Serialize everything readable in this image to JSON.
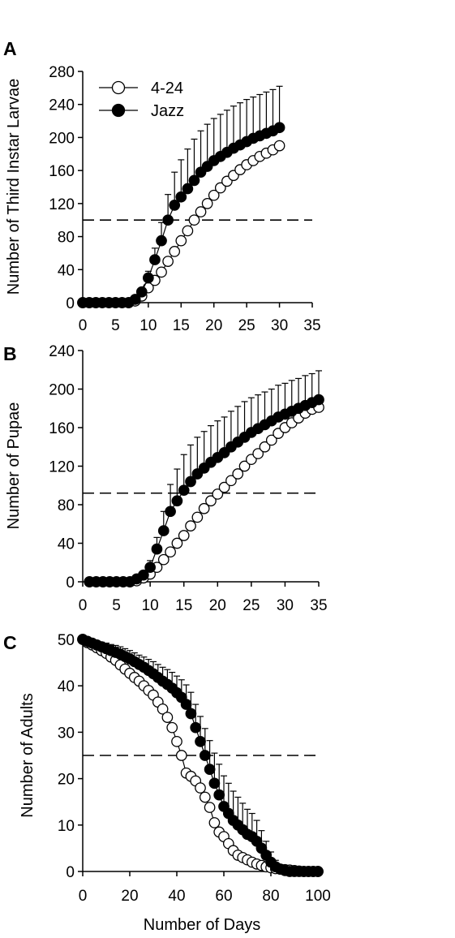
{
  "chart_data": [
    {
      "type": "line",
      "panel_label": "A",
      "xlabel": "",
      "ylabel": "Number of Third Instar Larvae",
      "xlim": [
        0,
        35
      ],
      "ylim": [
        0,
        280
      ],
      "xticks": [
        0,
        5,
        10,
        15,
        20,
        25,
        30,
        35
      ],
      "yticks": [
        0,
        40,
        80,
        120,
        160,
        200,
        240,
        280
      ],
      "reference_line": 100,
      "legend": {
        "position": "top-left",
        "entries": [
          "4-24",
          "Jazz"
        ]
      },
      "series": [
        {
          "name": "4-24",
          "marker": "open-circle",
          "color": "#000000",
          "x": [
            0,
            1,
            2,
            3,
            4,
            5,
            6,
            7,
            8,
            9,
            10,
            11,
            12,
            13,
            14,
            15,
            16,
            17,
            18,
            19,
            20,
            21,
            22,
            23,
            24,
            25,
            26,
            27,
            28,
            29,
            30
          ],
          "y": [
            0,
            0,
            0,
            0,
            0,
            0,
            0,
            0,
            2,
            8,
            18,
            27,
            37,
            50,
            62,
            75,
            87,
            100,
            110,
            120,
            130,
            139,
            147,
            154,
            161,
            167,
            172,
            177,
            181,
            185,
            190
          ],
          "err": [
            0,
            0,
            0,
            0,
            0,
            0,
            0,
            0,
            0,
            0,
            0,
            0,
            0,
            0,
            0,
            0,
            0,
            0,
            0,
            0,
            0,
            0,
            0,
            0,
            0,
            0,
            0,
            0,
            0,
            0,
            0
          ]
        },
        {
          "name": "Jazz",
          "marker": "filled-circle",
          "color": "#000000",
          "x": [
            0,
            1,
            2,
            3,
            4,
            5,
            6,
            7,
            8,
            9,
            10,
            11,
            12,
            13,
            14,
            15,
            16,
            17,
            18,
            19,
            20,
            21,
            22,
            23,
            24,
            25,
            26,
            27,
            28,
            29,
            30
          ],
          "y": [
            0,
            0,
            0,
            0,
            0,
            0,
            0,
            0,
            4,
            13,
            30,
            52,
            75,
            100,
            118,
            128,
            138,
            148,
            158,
            165,
            172,
            177,
            182,
            187,
            191,
            195,
            199,
            202,
            205,
            208,
            212
          ],
          "err": [
            0,
            0,
            0,
            0,
            0,
            0,
            0,
            0,
            1,
            4,
            8,
            14,
            22,
            31,
            40,
            45,
            48,
            50,
            50,
            51,
            51,
            51,
            51,
            51,
            51,
            51,
            50,
            50,
            50,
            50,
            50
          ]
        }
      ]
    },
    {
      "type": "line",
      "panel_label": "B",
      "xlabel": "",
      "ylabel": "Number of Pupae",
      "xlim": [
        0,
        35
      ],
      "ylim": [
        0,
        240
      ],
      "xticks": [
        0,
        5,
        10,
        15,
        20,
        25,
        30,
        35
      ],
      "yticks": [
        0,
        40,
        80,
        120,
        160,
        200,
        240
      ],
      "reference_line": 92,
      "series": [
        {
          "name": "4-24",
          "marker": "open-circle",
          "color": "#000000",
          "x": [
            1,
            2,
            3,
            4,
            5,
            6,
            7,
            8,
            9,
            10,
            11,
            12,
            13,
            14,
            15,
            16,
            17,
            18,
            19,
            20,
            21,
            22,
            23,
            24,
            25,
            26,
            27,
            28,
            29,
            30,
            31,
            32,
            33,
            34,
            35
          ],
          "y": [
            0,
            0,
            0,
            0,
            0,
            0,
            0,
            1,
            4,
            8,
            15,
            23,
            31,
            40,
            48,
            58,
            67,
            76,
            84,
            91,
            98,
            105,
            112,
            120,
            127,
            133,
            140,
            147,
            154,
            160,
            165,
            170,
            175,
            179,
            181
          ],
          "err": [
            0,
            0,
            0,
            0,
            0,
            0,
            0,
            0,
            0,
            0,
            0,
            0,
            0,
            0,
            0,
            0,
            0,
            0,
            0,
            0,
            0,
            0,
            0,
            0,
            0,
            0,
            0,
            0,
            0,
            0,
            0,
            0,
            0,
            0,
            0
          ]
        },
        {
          "name": "Jazz",
          "marker": "filled-circle",
          "color": "#000000",
          "x": [
            1,
            2,
            3,
            4,
            5,
            6,
            7,
            8,
            9,
            10,
            11,
            12,
            13,
            14,
            15,
            16,
            17,
            18,
            19,
            20,
            21,
            22,
            23,
            24,
            25,
            26,
            27,
            28,
            29,
            30,
            31,
            32,
            33,
            34,
            35
          ],
          "y": [
            0,
            0,
            0,
            0,
            0,
            0,
            0,
            3,
            7,
            15,
            34,
            53,
            73,
            84,
            95,
            104,
            112,
            118,
            124,
            129,
            134,
            140,
            145,
            150,
            155,
            159,
            163,
            167,
            171,
            174,
            177,
            180,
            183,
            186,
            189
          ],
          "err": [
            0,
            0,
            0,
            0,
            0,
            0,
            0,
            1,
            3,
            7,
            12,
            20,
            28,
            33,
            37,
            38,
            38,
            38,
            38,
            38,
            37,
            37,
            37,
            37,
            36,
            35,
            34,
            33,
            33,
            32,
            32,
            31,
            31,
            30,
            30
          ]
        }
      ]
    },
    {
      "type": "line",
      "panel_label": "C",
      "xlabel": "Number of Days",
      "ylabel": "Number of Adults",
      "xlim": [
        0,
        100
      ],
      "ylim": [
        0,
        50
      ],
      "xticks": [
        0,
        20,
        40,
        60,
        80,
        100
      ],
      "yticks": [
        0,
        10,
        20,
        30,
        40,
        50
      ],
      "reference_line": 25,
      "series": [
        {
          "name": "4-24",
          "marker": "open-circle",
          "color": "#000000",
          "x": [
            0,
            2,
            4,
            6,
            8,
            10,
            12,
            14,
            16,
            18,
            20,
            22,
            24,
            26,
            28,
            30,
            32,
            34,
            36,
            38,
            40,
            42,
            44,
            46,
            48,
            50,
            52,
            54,
            56,
            58,
            60,
            62,
            64,
            66,
            68,
            70,
            72,
            74,
            76,
            78,
            80,
            82,
            84,
            86,
            88,
            90,
            92,
            94,
            96,
            98,
            100
          ],
          "y": [
            50,
            49.3,
            48.8,
            48.2,
            47.6,
            47,
            46.2,
            45.5,
            44.5,
            43.6,
            42.7,
            41.8,
            41,
            40,
            39,
            38,
            36.5,
            35,
            33.2,
            31,
            28,
            25,
            21.2,
            20.5,
            19.5,
            18,
            16,
            13.8,
            10.5,
            8.5,
            7.5,
            6,
            4.5,
            3.5,
            3,
            2.5,
            2,
            1.6,
            1.3,
            1,
            0.8,
            0.6,
            0.5,
            0.4,
            0.3,
            0.2,
            0.1,
            0,
            0,
            0,
            0
          ],
          "err": [
            0,
            0,
            0,
            0,
            0,
            0,
            0,
            0,
            0,
            0,
            0,
            0,
            0,
            0,
            0,
            0,
            0,
            0,
            0,
            0,
            0,
            0,
            0,
            0,
            0,
            0,
            0,
            0,
            0,
            0,
            0,
            0,
            0,
            0,
            0,
            0,
            0,
            0,
            0,
            0,
            0,
            0,
            0,
            0,
            0,
            0,
            0,
            0,
            0,
            0,
            0
          ]
        },
        {
          "name": "Jazz",
          "marker": "filled-circle",
          "color": "#000000",
          "x": [
            0,
            2,
            4,
            6,
            8,
            10,
            12,
            14,
            16,
            18,
            20,
            22,
            24,
            26,
            28,
            30,
            32,
            34,
            36,
            38,
            40,
            42,
            44,
            46,
            48,
            50,
            52,
            54,
            56,
            58,
            60,
            62,
            64,
            66,
            68,
            70,
            72,
            74,
            76,
            78,
            80,
            82,
            84,
            86,
            88,
            90,
            92,
            94,
            96,
            98,
            100
          ],
          "y": [
            50,
            49.6,
            49.2,
            48.8,
            48.4,
            48,
            47.6,
            47.2,
            46.8,
            46.3,
            45.8,
            45.2,
            44.6,
            44,
            43.3,
            42.6,
            41.8,
            41,
            40.3,
            39.5,
            38.5,
            37.5,
            36,
            34,
            31,
            28,
            25,
            22,
            19,
            16.5,
            14,
            12.5,
            11,
            10,
            9,
            8,
            7.5,
            6.5,
            5,
            3.5,
            2,
            1,
            0.5,
            0.2,
            0,
            0,
            0,
            0,
            0,
            0,
            0
          ],
          "err": [
            0,
            0.5,
            0.7,
            0.8,
            1,
            1.2,
            1.3,
            1.5,
            1.6,
            1.7,
            1.8,
            1.9,
            2,
            2.2,
            2.4,
            2.6,
            2.8,
            3,
            3.2,
            3.4,
            3.6,
            3.8,
            4.2,
            4.6,
            5,
            5.4,
            5.8,
            6.2,
            6.5,
            6.6,
            6.6,
            6.5,
            6.3,
            6,
            5.7,
            5.4,
            5,
            4.5,
            3.8,
            3,
            2.2,
            1.4,
            0.8,
            0.3,
            0,
            0,
            0,
            0,
            0,
            0,
            0
          ]
        }
      ]
    }
  ]
}
